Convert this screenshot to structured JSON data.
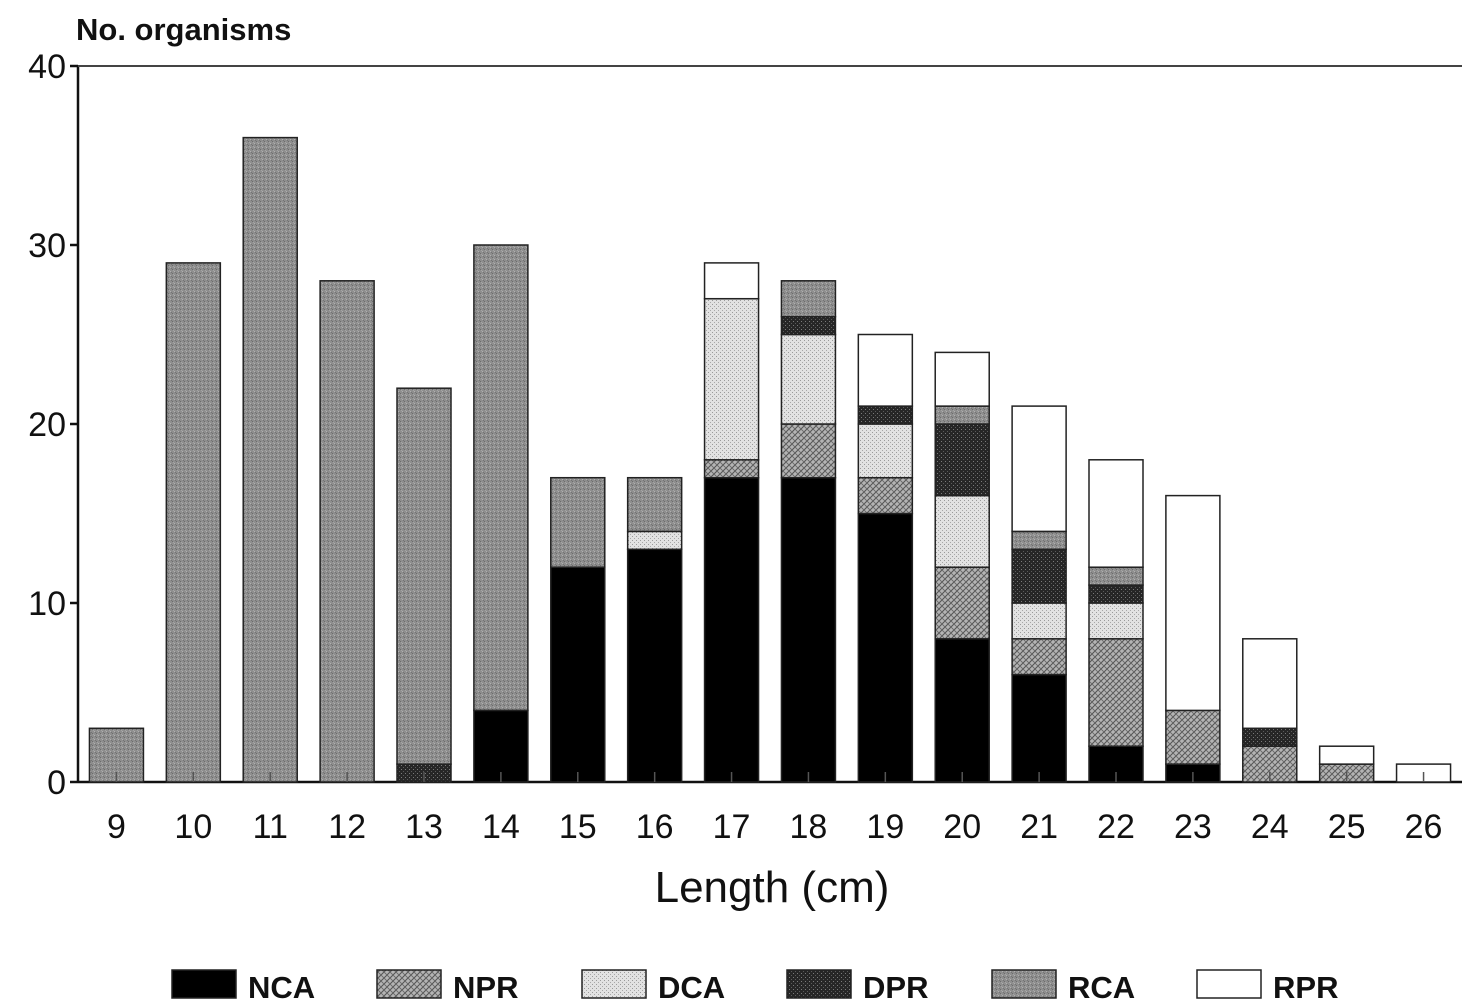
{
  "chart_data": {
    "type": "bar",
    "stacked": true,
    "ylabel": "No. organisms",
    "xlabel": "Length (cm)",
    "ylim": [
      0,
      40
    ],
    "yticks": [
      0,
      10,
      20,
      30,
      40
    ],
    "grid": false,
    "legend_position": "bottom",
    "categories": [
      "9",
      "10",
      "11",
      "12",
      "13",
      "14",
      "15",
      "16",
      "17",
      "18",
      "19",
      "20",
      "21",
      "22",
      "23",
      "24",
      "25",
      "26"
    ],
    "series": [
      {
        "name": "NCA",
        "color": "#000000",
        "pattern": "solid",
        "values": [
          0,
          0,
          0,
          0,
          0,
          4,
          12,
          13,
          17,
          17,
          15,
          8,
          6,
          2,
          1,
          0,
          0,
          0
        ]
      },
      {
        "name": "NPR",
        "color": "#8a8a8a",
        "pattern": "crosshatch",
        "values": [
          0,
          0,
          0,
          0,
          0,
          0,
          0,
          0,
          1,
          3,
          2,
          4,
          2,
          6,
          3,
          2,
          1,
          0
        ]
      },
      {
        "name": "DCA",
        "color": "#d8d8d8",
        "pattern": "light-stipple",
        "values": [
          0,
          0,
          0,
          0,
          0,
          0,
          0,
          1,
          9,
          5,
          3,
          4,
          2,
          2,
          0,
          0,
          0,
          0
        ]
      },
      {
        "name": "DPR",
        "color": "#2e2e2e",
        "pattern": "dark-stipple",
        "values": [
          0,
          0,
          0,
          0,
          1,
          0,
          0,
          0,
          0,
          1,
          1,
          4,
          3,
          1,
          0,
          1,
          0,
          0
        ]
      },
      {
        "name": "RCA",
        "color": "#8c8c8c",
        "pattern": "gray-stipple",
        "values": [
          3,
          29,
          36,
          28,
          21,
          26,
          5,
          3,
          0,
          2,
          0,
          1,
          1,
          1,
          0,
          0,
          0,
          0
        ]
      },
      {
        "name": "RPR",
        "color": "#ffffff",
        "pattern": "solid",
        "values": [
          0,
          0,
          0,
          0,
          0,
          0,
          0,
          0,
          2,
          0,
          4,
          3,
          7,
          6,
          12,
          5,
          1,
          1
        ]
      }
    ]
  }
}
